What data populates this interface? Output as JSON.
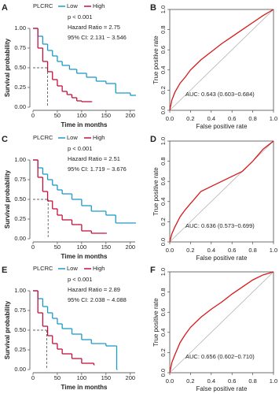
{
  "chart_data": [
    {
      "type": "km",
      "panel": "A",
      "legend_title": "PLCRC",
      "annotations": [
        "p < 0.001",
        "Hazard Ratio = 2.75",
        "95% CI: 2.131 − 3.546"
      ],
      "xlabel": "Time in months",
      "ylabel": "Survival probability",
      "xlim": [
        0,
        210
      ],
      "xticks": [
        0,
        50,
        100,
        150,
        200
      ],
      "ylim": [
        0,
        1
      ],
      "yticks": [
        {
          "value": 0,
          "label": "0.00"
        },
        {
          "value": 0.25,
          "label": "0.25"
        },
        {
          "value": 0.5,
          "label": "0.50"
        },
        {
          "value": 0.75,
          "label": "0.75"
        },
        {
          "value": 1,
          "label": "1.00"
        }
      ],
      "median": {
        "x": 30,
        "y": 0.5
      },
      "series": [
        {
          "name": "Low",
          "color": "#1d9ac8",
          "x": [
            0,
            10,
            20,
            30,
            40,
            50,
            60,
            75,
            90,
            110,
            130,
            150,
            170,
            200,
            210
          ],
          "values": [
            1,
            0.9,
            0.8,
            0.72,
            0.65,
            0.58,
            0.53,
            0.48,
            0.43,
            0.38,
            0.33,
            0.3,
            0.18,
            0.15,
            0.15
          ]
        },
        {
          "name": "High",
          "color": "#c4123c",
          "x": [
            0,
            10,
            20,
            30,
            40,
            50,
            60,
            70,
            80,
            90,
            100,
            120
          ],
          "values": [
            1,
            0.75,
            0.58,
            0.45,
            0.35,
            0.27,
            0.2,
            0.16,
            0.12,
            0.08,
            0.07,
            0.07
          ]
        }
      ]
    },
    {
      "type": "roc",
      "panel": "B",
      "annotation": "AUC: 0.643 (0.603−0.684)",
      "xlabel": "False positive rate",
      "ylabel": "True positive rate",
      "xlim": [
        0,
        1
      ],
      "xticks": [
        {
          "value": 0,
          "label": "0.0"
        },
        0.2,
        0.4,
        0.6,
        0.8,
        {
          "value": 1,
          "label": "1.0"
        }
      ],
      "ylim": [
        0,
        1
      ],
      "yticks": [
        {
          "value": 0,
          "label": "0.0"
        },
        0.2,
        0.4,
        0.6,
        0.8,
        {
          "value": 1,
          "label": "1.0"
        }
      ],
      "series": [
        {
          "color": "#d7191c",
          "x": [
            0,
            0.02,
            0.05,
            0.1,
            0.15,
            0.2,
            0.3,
            0.4,
            0.5,
            0.6,
            0.7,
            0.8,
            0.9,
            1
          ],
          "values": [
            0,
            0.1,
            0.18,
            0.27,
            0.33,
            0.4,
            0.5,
            0.58,
            0.66,
            0.73,
            0.8,
            0.87,
            0.94,
            1
          ]
        }
      ]
    },
    {
      "type": "km",
      "panel": "C",
      "legend_title": "PLCRC",
      "annotations": [
        "p < 0.001",
        "Hazard Ratio = 2.51",
        "95% CI: 1.719 − 3.676"
      ],
      "xlabel": "Time in months",
      "ylabel": "Survival probability",
      "xlim": [
        0,
        210
      ],
      "xticks": [
        0,
        50,
        100,
        150,
        200
      ],
      "ylim": [
        0,
        1
      ],
      "yticks": [
        {
          "value": 0,
          "label": "0.00"
        },
        {
          "value": 0.25,
          "label": "0.25"
        },
        {
          "value": 0.5,
          "label": "0.50"
        },
        {
          "value": 0.75,
          "label": "0.75"
        },
        {
          "value": 1,
          "label": "1.00"
        }
      ],
      "median": {
        "x": 31,
        "y": 0.5
      },
      "series": [
        {
          "name": "Low",
          "color": "#1d9ac8",
          "x": [
            0,
            10,
            20,
            30,
            40,
            50,
            60,
            80,
            100,
            120,
            150,
            170,
            210
          ],
          "values": [
            1,
            0.9,
            0.82,
            0.75,
            0.68,
            0.62,
            0.57,
            0.5,
            0.42,
            0.35,
            0.3,
            0.2,
            0.2
          ]
        },
        {
          "name": "High",
          "color": "#c4123c",
          "x": [
            0,
            10,
            20,
            30,
            40,
            50,
            60,
            80,
            100,
            120,
            150
          ],
          "values": [
            1,
            0.78,
            0.6,
            0.48,
            0.38,
            0.3,
            0.24,
            0.18,
            0.1,
            0.07,
            0.07
          ]
        }
      ]
    },
    {
      "type": "roc",
      "panel": "D",
      "annotation": "AUC: 0.636 (0.573−0.699)",
      "xlabel": "False positive rate",
      "ylabel": "True positive rate",
      "xlim": [
        0,
        1
      ],
      "xticks": [
        {
          "value": 0,
          "label": "0.0"
        },
        0.2,
        0.4,
        0.6,
        0.8,
        {
          "value": 1,
          "label": "1.0"
        }
      ],
      "ylim": [
        0,
        1
      ],
      "yticks": [
        {
          "value": 0,
          "label": "0.0"
        },
        0.2,
        0.4,
        0.6,
        0.8,
        {
          "value": 1,
          "label": "1.0"
        }
      ],
      "series": [
        {
          "color": "#d7191c",
          "x": [
            0,
            0.02,
            0.05,
            0.1,
            0.15,
            0.2,
            0.3,
            0.4,
            0.5,
            0.6,
            0.7,
            0.8,
            0.9,
            1
          ],
          "values": [
            0,
            0.08,
            0.15,
            0.25,
            0.32,
            0.38,
            0.5,
            0.55,
            0.6,
            0.65,
            0.7,
            0.8,
            0.92,
            1
          ]
        }
      ]
    },
    {
      "type": "km",
      "panel": "E",
      "legend_title": "PLCRC",
      "annotations": [
        "p < 0.001",
        "Hazard Ratio = 2.89",
        "95% CI: 2.038 − 4.088"
      ],
      "xlabel": "Time in months",
      "ylabel": "Survival probability",
      "xlim": [
        0,
        210
      ],
      "xticks": [
        0,
        50,
        100,
        150,
        200
      ],
      "ylim": [
        0,
        1
      ],
      "yticks": [
        {
          "value": 0,
          "label": "0.00"
        },
        {
          "value": 0.25,
          "label": "0.25"
        },
        {
          "value": 0.5,
          "label": "0.50"
        },
        {
          "value": 0.75,
          "label": "0.75"
        },
        {
          "value": 1,
          "label": "1.00"
        }
      ],
      "median": {
        "x": 28,
        "y": 0.5
      },
      "series": [
        {
          "name": "Low",
          "color": "#1d9ac8",
          "x": [
            0,
            10,
            20,
            30,
            40,
            50,
            60,
            80,
            100,
            120,
            150,
            170,
            172
          ],
          "values": [
            1,
            0.9,
            0.8,
            0.72,
            0.65,
            0.58,
            0.52,
            0.45,
            0.38,
            0.33,
            0.3,
            0.3,
            0
          ]
        },
        {
          "name": "High",
          "color": "#c4123c",
          "x": [
            0,
            10,
            20,
            30,
            40,
            50,
            60,
            80,
            100,
            125
          ],
          "values": [
            1,
            0.72,
            0.55,
            0.43,
            0.33,
            0.26,
            0.2,
            0.14,
            0.08,
            0.06
          ]
        }
      ]
    },
    {
      "type": "roc",
      "panel": "F",
      "annotation": "AUC: 0.656 (0.602−0.710)",
      "xlabel": "False positive rate",
      "ylabel": "True positive rate",
      "xlim": [
        0,
        1
      ],
      "xticks": [
        {
          "value": 0,
          "label": "0.0"
        },
        0.2,
        0.4,
        0.6,
        0.8,
        {
          "value": 1,
          "label": "1.0"
        }
      ],
      "ylim": [
        0,
        1
      ],
      "yticks": [
        {
          "value": 0,
          "label": "0.0"
        },
        0.2,
        0.4,
        0.6,
        0.8,
        {
          "value": 1,
          "label": "1.0"
        }
      ],
      "series": [
        {
          "color": "#d7191c",
          "x": [
            0,
            0.02,
            0.05,
            0.1,
            0.15,
            0.2,
            0.3,
            0.4,
            0.5,
            0.6,
            0.7,
            0.8,
            0.9,
            1
          ],
          "values": [
            0,
            0.1,
            0.18,
            0.3,
            0.38,
            0.45,
            0.55,
            0.63,
            0.7,
            0.78,
            0.85,
            0.92,
            0.97,
            1
          ]
        }
      ]
    }
  ]
}
